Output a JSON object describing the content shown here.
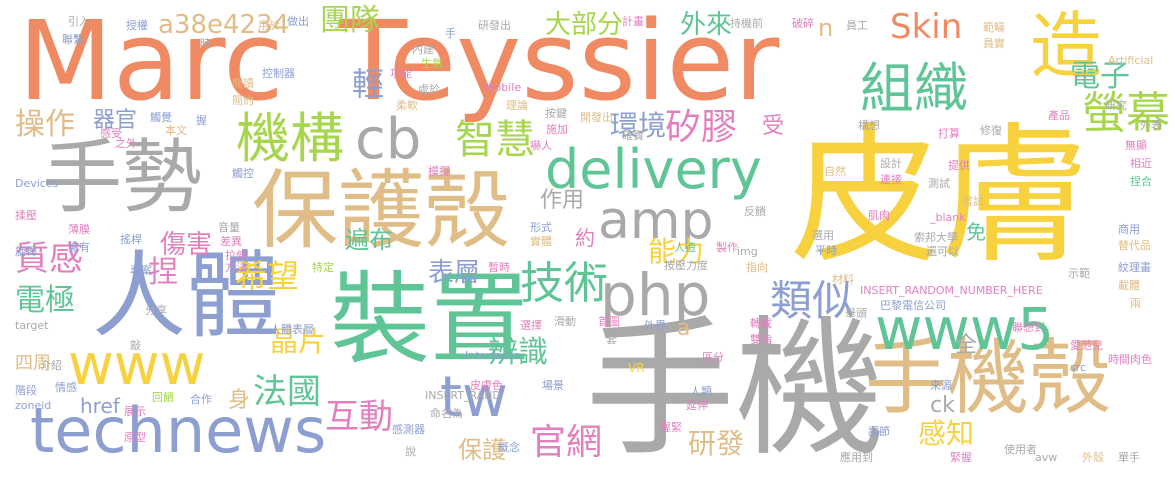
{
  "colors": {
    "orange": "#f08a63",
    "yellow": "#f7d23e",
    "tan": "#e0bd86",
    "green": "#5fc596",
    "blue": "#8c9fd0",
    "gray": "#a9a9a9",
    "pink": "#e37fbe",
    "lime": "#a6d64c"
  },
  "words": [
    "Marc",
    "Teyssier",
    "皮膚",
    "手機",
    "裝置",
    "保護殼",
    "手機殼",
    "人體",
    "手勢",
    "technews",
    "www5",
    "www",
    "php",
    "delivery",
    "amp",
    "造",
    "組織",
    "機構",
    "cb",
    "智慧",
    "技術",
    "tw",
    "類似",
    "螢幕",
    "電子",
    "團隊",
    "Skin",
    "外來",
    "大部分",
    "矽膠",
    "辨識",
    "官網",
    "互動",
    "法國",
    "希望",
    "表層",
    "晶片",
    "質感",
    "電極",
    "捏",
    "輕",
    "操作",
    "環境",
    "研發",
    "感知",
    "保護",
    "作用",
    "能力",
    "傷害",
    "遍布",
    "href",
    "a38e4234",
    "a",
    "n",
    "ck",
    "器官",
    "全",
    "免",
    "受",
    "約",
    "身",
    "四周",
    "Artificial",
    "Mobile",
    "Devices",
    "VR",
    "Android",
    "Interfaces",
    "INSERT_RANDOM_NUMBER_HERE",
    "INSERT_RAND",
    "巴黎電信公司",
    "索邦大學",
    "zoneid",
    "target",
    "_blank",
    "img",
    "src",
    "avw",
    "引入",
    "授權",
    "用於",
    "做出",
    "手",
    "研發出",
    "計畫",
    "持機前",
    "破碎",
    "員工",
    "範疇",
    "員實",
    "聯繫",
    "時",
    "內建",
    "功能",
    "生氣",
    "處於",
    "柔軟",
    "理論",
    "按鍵",
    "施加",
    "確實",
    "開發出",
    "嚇人",
    "感受",
    "之外",
    "本文",
    "握",
    "觸覺",
    "閱讀",
    "簡約",
    "控制器",
    "構想",
    "打算",
    "修復",
    "產品",
    "研究",
    "外表",
    "無顯",
    "相近",
    "捏合",
    "觸控",
    "模擬",
    "自然",
    "設計",
    "連接",
    "提供",
    "測試",
    "嘗試",
    "薄膜",
    "擁有",
    "搖桿",
    "旋轉",
    "揉壓",
    "音量",
    "拉伸",
    "反饋",
    "肌肉",
    "選用",
    "平時",
    "還可以",
    "商用",
    "替代品",
    "紋理畫",
    "載體",
    "兩",
    "示範",
    "聯想到",
    "專案",
    "特定",
    "方法",
    "差異",
    "形式",
    "實體",
    "人造",
    "製作",
    "指向",
    "按壓力度",
    "暫時",
    "分享",
    "材料",
    "舉頭",
    "愛范兒",
    "時間肉色",
    "滑動",
    "首圖",
    "外界",
    "轉載",
    "雙指",
    "區分",
    "人類",
    "延伸",
    "場景",
    "選擇",
    "套",
    "敲",
    "介紹",
    "人體表層",
    "來源",
    "階段",
    "情感",
    "回饋",
    "合作",
    "展示",
    "原型",
    "皮膚色",
    "命名為",
    "握緊",
    "概念",
    "應用到",
    "調節",
    "說",
    "感測器",
    "緊握",
    "使用者",
    "外殼",
    "單手"
  ]
}
